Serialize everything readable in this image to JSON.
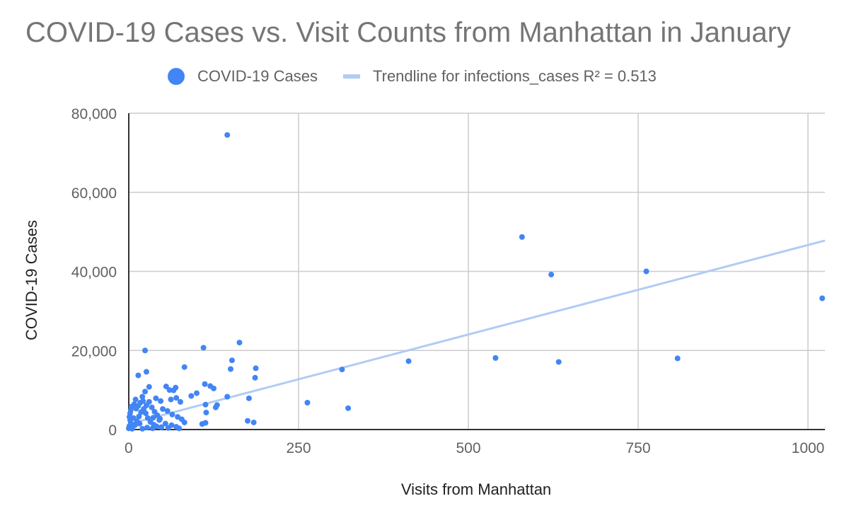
{
  "chart_data": {
    "type": "scatter",
    "title": "COVID-19 Cases vs. Visit Counts from Manhattan in January",
    "xlabel": "Visits from Manhattan",
    "ylabel": "COVID-19 Cases",
    "xlim": [
      0,
      1025
    ],
    "ylim": [
      0,
      80000
    ],
    "x_ticks": [
      "0",
      "250",
      "500",
      "750",
      "1000"
    ],
    "x_tick_values": [
      0,
      250,
      500,
      750,
      1000
    ],
    "y_ticks": [
      "0",
      "20,000",
      "40,000",
      "60,000",
      "80,000"
    ],
    "y_tick_values": [
      0,
      20000,
      40000,
      60000,
      80000
    ],
    "grid": true,
    "legend_position": "top-center",
    "colors": {
      "points": "#4285F4",
      "trendline": "#B0CCF5",
      "grid": "#CCCCCC",
      "axis": "#333333",
      "text": "#616161",
      "title": "#757575"
    },
    "legend": [
      {
        "label": "COVID-19 Cases",
        "kind": "point"
      },
      {
        "label": "Trendline for infections_cases R² = 0.513",
        "kind": "line"
      }
    ],
    "trendline": {
      "label": "Trendline for infections_cases R² = 0.513",
      "x": [
        0,
        1025
      ],
      "y": [
        1400,
        47800
      ]
    },
    "series": [
      {
        "name": "COVID-19 Cases",
        "points": [
          [
            145,
            74500
          ],
          [
            579,
            48700
          ],
          [
            622,
            39200
          ],
          [
            762,
            40000
          ],
          [
            1021,
            33200
          ],
          [
            540,
            18100
          ],
          [
            633,
            17100
          ],
          [
            808,
            18000
          ],
          [
            412,
            17300
          ],
          [
            314,
            15200
          ],
          [
            263,
            6800
          ],
          [
            323,
            5400
          ],
          [
            163,
            22000
          ],
          [
            110,
            20700
          ],
          [
            24,
            20000
          ],
          [
            82,
            15800
          ],
          [
            150,
            15300
          ],
          [
            152,
            17500
          ],
          [
            187,
            15500
          ],
          [
            186,
            13100
          ],
          [
            26,
            14600
          ],
          [
            14,
            13700
          ],
          [
            112,
            11500
          ],
          [
            120,
            11000
          ],
          [
            125,
            10400
          ],
          [
            100,
            9200
          ],
          [
            92,
            8500
          ],
          [
            145,
            8300
          ],
          [
            177,
            7900
          ],
          [
            130,
            6200
          ],
          [
            113,
            6300
          ],
          [
            114,
            4300
          ],
          [
            128,
            5600
          ],
          [
            175,
            2200
          ],
          [
            184,
            1800
          ],
          [
            108,
            1400
          ],
          [
            113,
            1700
          ],
          [
            55,
            10900
          ],
          [
            60,
            10000
          ],
          [
            66,
            9900
          ],
          [
            69,
            10600
          ],
          [
            30,
            10800
          ],
          [
            40,
            7900
          ],
          [
            47,
            7200
          ],
          [
            62,
            7600
          ],
          [
            70,
            8000
          ],
          [
            76,
            7000
          ],
          [
            50,
            5200
          ],
          [
            57,
            4700
          ],
          [
            64,
            3800
          ],
          [
            72,
            3200
          ],
          [
            78,
            2600
          ],
          [
            82,
            1800
          ],
          [
            36,
            3000
          ],
          [
            45,
            2400
          ],
          [
            54,
            1500
          ],
          [
            63,
            1100
          ],
          [
            70,
            700
          ],
          [
            74,
            300
          ],
          [
            24,
            9600
          ],
          [
            20,
            8300
          ],
          [
            10,
            7600
          ],
          [
            8,
            6400
          ],
          [
            4,
            5800
          ],
          [
            3,
            4900
          ],
          [
            2,
            4100
          ],
          [
            1,
            3200
          ],
          [
            2,
            2400
          ],
          [
            3,
            1600
          ],
          [
            1,
            900
          ],
          [
            0,
            300
          ],
          [
            5,
            200
          ],
          [
            9,
            1100
          ],
          [
            12,
            2100
          ],
          [
            15,
            3300
          ],
          [
            18,
            4400
          ],
          [
            22,
            5200
          ],
          [
            26,
            6100
          ],
          [
            30,
            7000
          ],
          [
            34,
            5600
          ],
          [
            38,
            4500
          ],
          [
            42,
            3600
          ],
          [
            46,
            2700
          ],
          [
            11,
            5300
          ],
          [
            14,
            6000
          ],
          [
            17,
            6800
          ],
          [
            21,
            7200
          ],
          [
            25,
            4100
          ],
          [
            28,
            2900
          ],
          [
            32,
            1900
          ],
          [
            37,
            1200
          ],
          [
            41,
            800
          ],
          [
            48,
            600
          ],
          [
            58,
            400
          ],
          [
            20,
            200
          ],
          [
            7,
            2900
          ],
          [
            6,
            1200
          ],
          [
            16,
            1500
          ],
          [
            27,
            500
          ],
          [
            35,
            300
          ]
        ]
      }
    ]
  }
}
